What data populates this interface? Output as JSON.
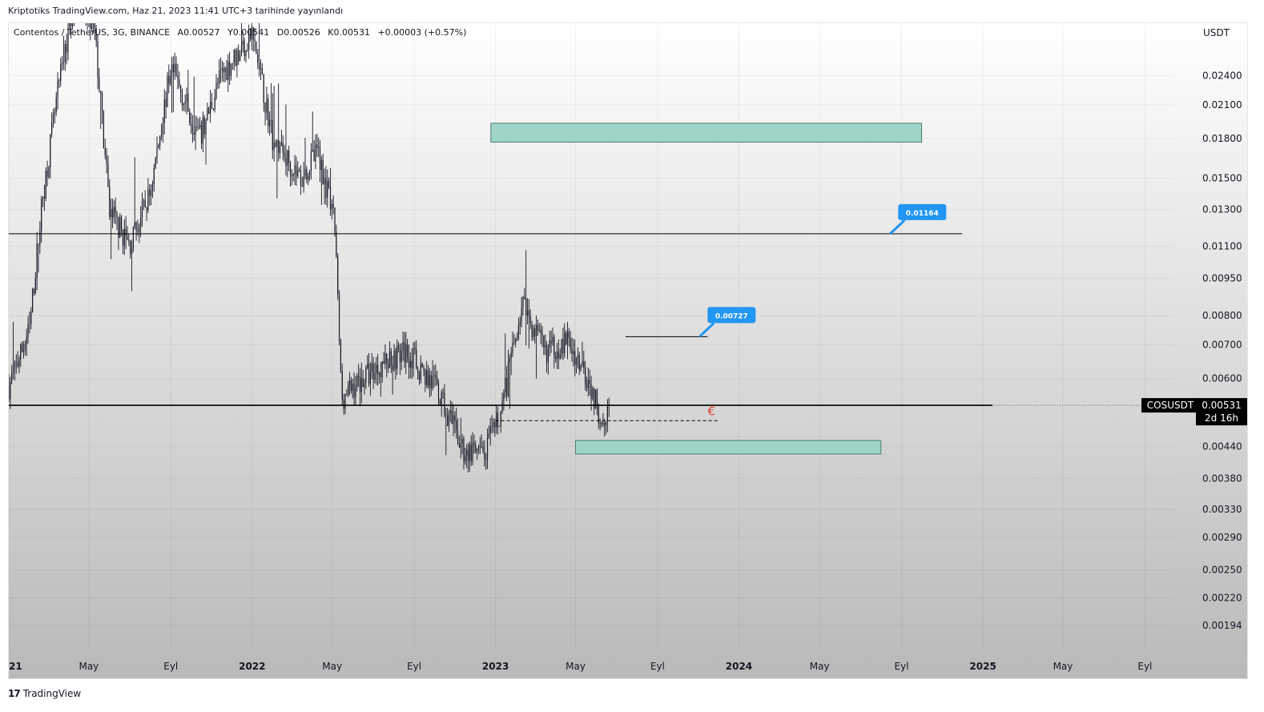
{
  "header": {
    "published_text": "Kriptotiks TradingView.com, Haz 21, 2023 11:41 UTC+3 tarihinde yayınlandı"
  },
  "symbol_bar": {
    "name": "Contentos / TetherUS, 3G, BINANCE",
    "open": "A0.00527",
    "high": "Y0.00541",
    "low": "D0.00526",
    "close": "K0.00531",
    "change": "+0.00003 (+0.57%)"
  },
  "currency": "USDT",
  "footer": {
    "logo_icon": "tv-logo-icon",
    "logo_glyph": "17",
    "brand": "TradingView"
  },
  "colors": {
    "candle": "#131722",
    "zone_fill": "#9fd4c8",
    "zone_border": "#4a7f73",
    "label_blue": "#2196f3",
    "price_tag": "#000000",
    "euro_mark": "#e53935"
  },
  "chart_data": {
    "type": "candlestick",
    "scale": "log",
    "symbol": "COSUSDT",
    "interval": "3G",
    "x_ticks": [
      "2021",
      "May",
      "Eyl",
      "2022",
      "May",
      "Eyl",
      "2023",
      "May",
      "Eyl",
      "2024",
      "May",
      "Eyl",
      "2025",
      "May",
      "Eyl"
    ],
    "x_tick_dates": [
      "2021-01-01",
      "2021-05-01",
      "2021-09-01",
      "2022-01-01",
      "2022-05-01",
      "2022-09-01",
      "2023-01-01",
      "2023-05-01",
      "2023-09-01",
      "2024-01-01",
      "2024-05-01",
      "2024-09-01",
      "2025-01-01",
      "2025-05-01",
      "2025-09-01"
    ],
    "x_range": [
      "2021-01-01",
      "2025-10-15"
    ],
    "y_ticks": [
      "0.02400",
      "0.02100",
      "0.01800",
      "0.01500",
      "0.01300",
      "0.01100",
      "0.00950",
      "0.00800",
      "0.00700",
      "0.00600",
      "0.00440",
      "0.00380",
      "0.00330",
      "0.00290",
      "0.00250",
      "0.00220",
      "0.00194"
    ],
    "y_range": [
      0.00175,
      0.0305
    ],
    "price_path": [
      [
        "2021-01-01",
        0.0058
      ],
      [
        "2021-02-01",
        0.0075
      ],
      [
        "2021-02-20",
        0.0135
      ],
      [
        "2021-03-15",
        0.022
      ],
      [
        "2021-04-10",
        0.035
      ],
      [
        "2021-05-10",
        0.029
      ],
      [
        "2021-06-01",
        0.013
      ],
      [
        "2021-07-01",
        0.011
      ],
      [
        "2021-08-01",
        0.014
      ],
      [
        "2021-09-01",
        0.025
      ],
      [
        "2021-10-15",
        0.018
      ],
      [
        "2021-11-15",
        0.024
      ],
      [
        "2022-01-01",
        0.029
      ],
      [
        "2022-02-01",
        0.018
      ],
      [
        "2022-03-15",
        0.015
      ],
      [
        "2022-04-10",
        0.017
      ],
      [
        "2022-05-05",
        0.012
      ],
      [
        "2022-05-15",
        0.0055
      ],
      [
        "2022-06-15",
        0.006
      ],
      [
        "2022-07-20",
        0.0065
      ],
      [
        "2022-08-20",
        0.0068
      ],
      [
        "2022-10-01",
        0.0058
      ],
      [
        "2022-11-15",
        0.0043
      ],
      [
        "2022-12-15",
        0.0042
      ],
      [
        "2023-01-10",
        0.0052
      ],
      [
        "2023-02-10",
        0.0085
      ],
      [
        "2023-03-15",
        0.0068
      ],
      [
        "2023-04-20",
        0.0071
      ],
      [
        "2023-05-20",
        0.006
      ],
      [
        "2023-06-08",
        0.005
      ],
      [
        "2023-06-21",
        0.00531
      ]
    ],
    "levels": [
      {
        "price": 0.01164,
        "label": "0.01164",
        "style": "solid",
        "start": "2021-01-01",
        "end": "2024-12-01"
      },
      {
        "price": 0.00727,
        "label": "0.00727",
        "style": "solid",
        "start": "2023-07-15",
        "end": "2023-11-15"
      },
      {
        "price": 0.00531,
        "label": "",
        "style": "solid",
        "start": "2021-01-01",
        "end": "2025-01-15"
      },
      {
        "price": 0.00495,
        "label": "",
        "style": "dashed",
        "start": "2023-01-01",
        "end": "2023-12-01"
      }
    ],
    "zones": [
      {
        "price_top": 0.0193,
        "price_bottom": 0.0177,
        "start": "2022-12-25",
        "end": "2024-10-01"
      },
      {
        "price_top": 0.00452,
        "price_bottom": 0.00425,
        "start": "2023-05-01",
        "end": "2024-08-01"
      }
    ],
    "annotations": [
      {
        "text": "€",
        "date": "2023-11-15",
        "price": 0.00515
      }
    ],
    "last_price": {
      "symbol": "COSUSDT",
      "value": "0.00531",
      "countdown": "2d 16h"
    }
  }
}
